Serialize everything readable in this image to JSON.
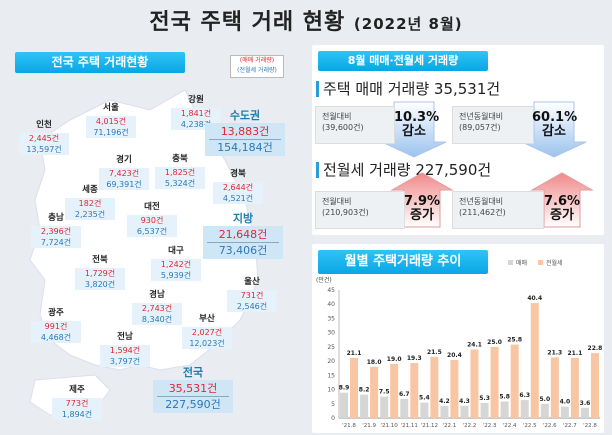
{
  "title": {
    "main": "전국 주택 거래 현황",
    "period": "(2022년 8월)"
  },
  "left": {
    "banner": "전국 주택 거래현황",
    "legend_sale": "(매매 거래량)",
    "legend_rent": "(전월세 거래량)",
    "regions": [
      {
        "name": "강원",
        "sale": "1,841건",
        "rent": "4,238건"
      },
      {
        "name": "서울",
        "sale": "4,015건",
        "rent": "71,196건"
      },
      {
        "name": "인천",
        "sale": "2,445건",
        "rent": "13,597건"
      },
      {
        "name": "경기",
        "sale": "7,423건",
        "rent": "69,391건"
      },
      {
        "name": "충북",
        "sale": "1,825건",
        "rent": "5,324건"
      },
      {
        "name": "세종",
        "sale": "182건",
        "rent": "2,235건"
      },
      {
        "name": "대전",
        "sale": "930건",
        "rent": "6,537건"
      },
      {
        "name": "충남",
        "sale": "2,396건",
        "rent": "7,724건"
      },
      {
        "name": "경북",
        "sale": "2,644건",
        "rent": "4,521건"
      },
      {
        "name": "전북",
        "sale": "1,729건",
        "rent": "3,820건"
      },
      {
        "name": "대구",
        "sale": "1,242건",
        "rent": "5,939건"
      },
      {
        "name": "경남",
        "sale": "2,743건",
        "rent": "8,340건"
      },
      {
        "name": "울산",
        "sale": "731건",
        "rent": "2,546건"
      },
      {
        "name": "광주",
        "sale": "991건",
        "rent": "4,468건"
      },
      {
        "name": "부산",
        "sale": "2,027건",
        "rent": "12,023건"
      },
      {
        "name": "전남",
        "sale": "1,594건",
        "rent": "3,797건"
      },
      {
        "name": "제주",
        "sale": "773건",
        "rent": "1,894건"
      }
    ],
    "summary": [
      {
        "name": "수도권",
        "sale": "13,883건",
        "rent": "154,184건"
      },
      {
        "name": "지방",
        "sale": "21,648건",
        "rent": "73,406건"
      },
      {
        "name": "전국",
        "sale": "35,531건",
        "rent": "227,590건"
      }
    ]
  },
  "volume": {
    "banner": "8월 매매·전월세 거래량",
    "sale_heading": "주택 매매 거래량 35,531건",
    "sale_cmp": [
      {
        "label": "전월대비",
        "base": "(39,600건)",
        "pct": "10.3%",
        "dir": "감소"
      },
      {
        "label": "전년동월대비",
        "base": "(89,057건)",
        "pct": "60.1%",
        "dir": "감소"
      }
    ],
    "rent_heading": "전월세 거래량 227,590건",
    "rent_cmp": [
      {
        "label": "전월대비",
        "base": "(210,903건)",
        "pct": "7.9%",
        "dir": "증가"
      },
      {
        "label": "전년동월대비",
        "base": "(211,462건)",
        "pct": "7.6%",
        "dir": "증가"
      }
    ]
  },
  "chart_data": {
    "type": "bar",
    "title": "월별 주택거래량 추이",
    "ylabel": "(만건)",
    "ylim": [
      0,
      45
    ],
    "yticks": [
      0,
      5,
      10,
      15,
      20,
      25,
      30,
      35,
      40,
      45
    ],
    "categories": [
      "'21.8",
      "'21.9",
      "'21.10",
      "'21.11",
      "'21.12",
      "'22.1",
      "'22.2",
      "'22.3",
      "'22.4",
      "'22.5",
      "'22.6",
      "'22.7",
      "'22.8"
    ],
    "series": [
      {
        "name": "매매",
        "color": "#d6d6d6",
        "values": [
          8.9,
          8.2,
          7.5,
          6.7,
          5.4,
          4.2,
          4.3,
          5.3,
          5.8,
          6.3,
          5.0,
          4.0,
          3.6
        ]
      },
      {
        "name": "전월세",
        "color": "#f8c6a2",
        "values": [
          21.1,
          18.0,
          19.0,
          19.3,
          21.5,
          20.4,
          24.1,
          25.0,
          25.8,
          40.4,
          21.3,
          21.1,
          22.8
        ]
      }
    ],
    "legend": "top-right"
  }
}
